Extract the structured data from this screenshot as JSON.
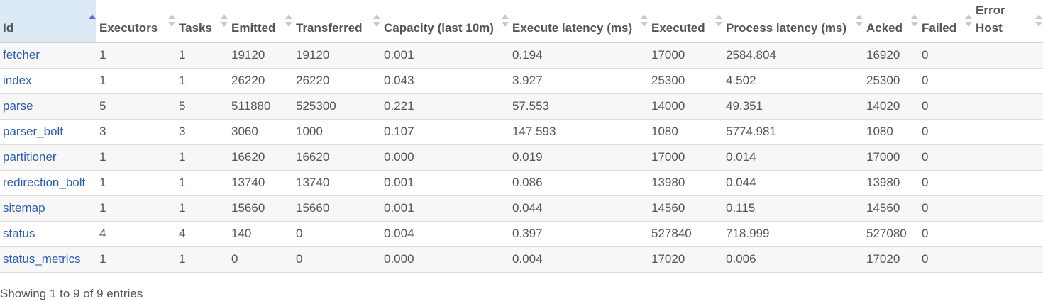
{
  "table": {
    "headers": [
      {
        "label": "Id",
        "sort": "asc"
      },
      {
        "label": "Executors",
        "sort": "none"
      },
      {
        "label": "Tasks",
        "sort": "none"
      },
      {
        "label": "Emitted",
        "sort": "none"
      },
      {
        "label": "Transferred",
        "sort": "none"
      },
      {
        "label": "Capacity (last 10m)",
        "sort": "none"
      },
      {
        "label": "Execute latency (ms)",
        "sort": "none"
      },
      {
        "label": "Executed",
        "sort": "none"
      },
      {
        "label": "Process latency (ms)",
        "sort": "none"
      },
      {
        "label": "Acked",
        "sort": "none"
      },
      {
        "label": "Failed",
        "sort": "none"
      },
      {
        "label": "Error Host",
        "sort": "none"
      }
    ],
    "rows": [
      [
        "fetcher",
        "1",
        "1",
        "19120",
        "19120",
        "0.001",
        "0.194",
        "17000",
        "2584.804",
        "16920",
        "0",
        ""
      ],
      [
        "index",
        "1",
        "1",
        "26220",
        "26220",
        "0.043",
        "3.927",
        "25300",
        "4.502",
        "25300",
        "0",
        ""
      ],
      [
        "parse",
        "5",
        "5",
        "511880",
        "525300",
        "0.221",
        "57.553",
        "14000",
        "49.351",
        "14020",
        "0",
        ""
      ],
      [
        "parser_bolt",
        "3",
        "3",
        "3060",
        "1000",
        "0.107",
        "147.593",
        "1080",
        "5774.981",
        "1080",
        "0",
        ""
      ],
      [
        "partitioner",
        "1",
        "1",
        "16620",
        "16620",
        "0.000",
        "0.019",
        "17000",
        "0.014",
        "17000",
        "0",
        ""
      ],
      [
        "redirection_bolt",
        "1",
        "1",
        "13740",
        "13740",
        "0.001",
        "0.086",
        "13980",
        "0.044",
        "13980",
        "0",
        ""
      ],
      [
        "sitemap",
        "1",
        "1",
        "15660",
        "15660",
        "0.001",
        "0.044",
        "14560",
        "0.115",
        "14560",
        "0",
        ""
      ],
      [
        "status",
        "4",
        "4",
        "140",
        "0",
        "0.004",
        "0.397",
        "527840",
        "718.999",
        "527080",
        "0",
        ""
      ],
      [
        "status_metrics",
        "1",
        "1",
        "0",
        "0",
        "0.000",
        "0.004",
        "17020",
        "0.006",
        "17020",
        "0",
        ""
      ]
    ]
  },
  "footer": {
    "info": "Showing 1 to 9 of 9 entries"
  },
  "colors": {
    "link": "#2a5db0",
    "sorted_header_bg": "#dceaf5",
    "stripe": "#f7f7f7",
    "sort_active": "#7b5fd6",
    "sort_inactive": "#c8c8c8"
  }
}
